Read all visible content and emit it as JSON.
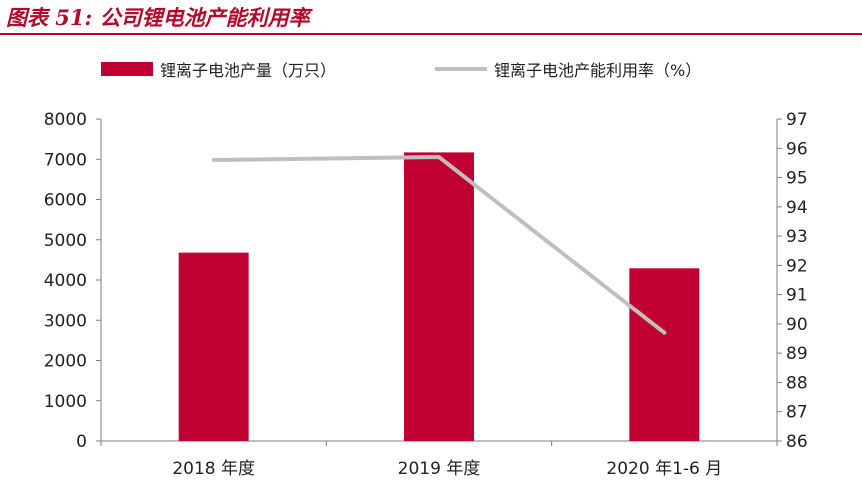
{
  "title": "图表 51: 公司锂电池产能利用率",
  "colors": {
    "accent": "#b4092a",
    "bar": "#c00030",
    "line": "#bfbfbf",
    "axis": "#7f7f7f"
  },
  "chart_data": {
    "type": "bar",
    "categories": [
      "2018 年度",
      "2019 年度",
      "2020 年1-6 月"
    ],
    "series": [
      {
        "name": "锂离子电池产量（万只）",
        "type": "bar",
        "axis": "left",
        "values": [
          4680,
          7170,
          4290
        ]
      },
      {
        "name": "锂离子电池产能利用率（%）",
        "type": "line",
        "axis": "right",
        "values": [
          95.6,
          95.7,
          89.7
        ]
      }
    ],
    "y_left": {
      "lim": [
        0,
        8000
      ],
      "ticks": [
        "0",
        "1000",
        "2000",
        "3000",
        "4000",
        "5000",
        "6000",
        "7000",
        "8000"
      ]
    },
    "y_right": {
      "lim": [
        86,
        97
      ],
      "ticks": [
        "86",
        "87",
        "88",
        "89",
        "90",
        "91",
        "92",
        "93",
        "94",
        "95",
        "96",
        "97"
      ]
    },
    "grid": false,
    "legend": "top"
  }
}
